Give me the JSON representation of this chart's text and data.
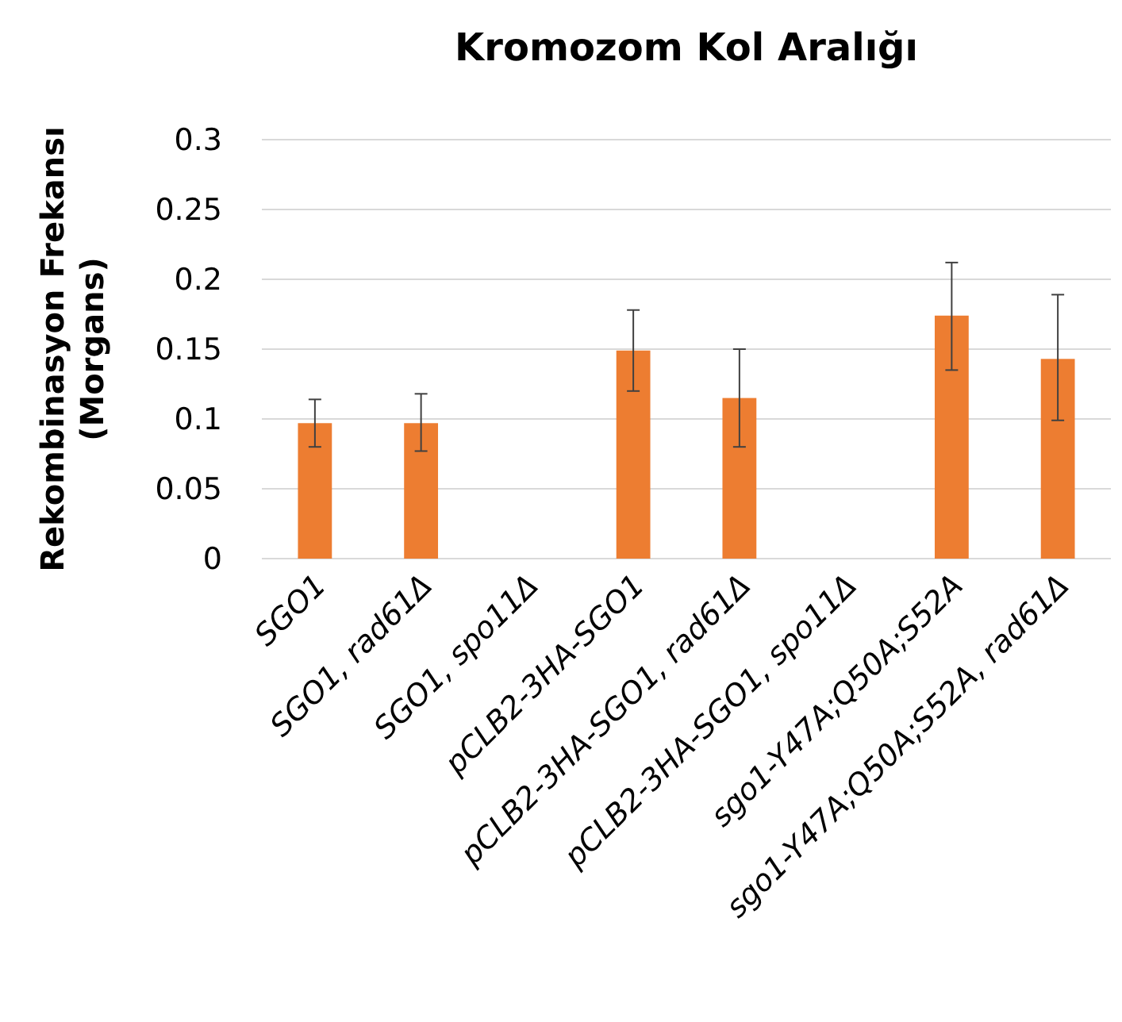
{
  "chart_data": {
    "type": "bar",
    "title": "Kromozom Kol Aralığı",
    "ylabel": "Rekombinasyon Frekansı\n(Morgans)",
    "categories": [
      "SGO1",
      "SGO1, rad61Δ",
      "SGO1, spo11Δ",
      "pCLB2-3HA-SGO1",
      "pCLB2-3HA-SGO1,  rad61Δ",
      "pCLB2-3HA-SGO1,  spo11Δ",
      "sgo1-Y47A;Q50A;S52A",
      "sgo1-Y47A;Q50A;S52A, rad61Δ"
    ],
    "values": [
      0.097,
      0.097,
      null,
      0.149,
      0.115,
      null,
      0.174,
      0.143
    ],
    "errors": [
      [
        0.08,
        0.114
      ],
      [
        0.077,
        0.118
      ],
      null,
      [
        0.12,
        0.178
      ],
      [
        0.08,
        0.15
      ],
      null,
      [
        0.135,
        0.212
      ],
      [
        0.099,
        0.189
      ]
    ],
    "color": "#ed7d31",
    "ylim": [
      0,
      0.3
    ],
    "yticks": [
      0,
      0.05,
      0.1,
      0.15,
      0.2,
      0.25,
      0.3
    ],
    "grid": "y"
  }
}
